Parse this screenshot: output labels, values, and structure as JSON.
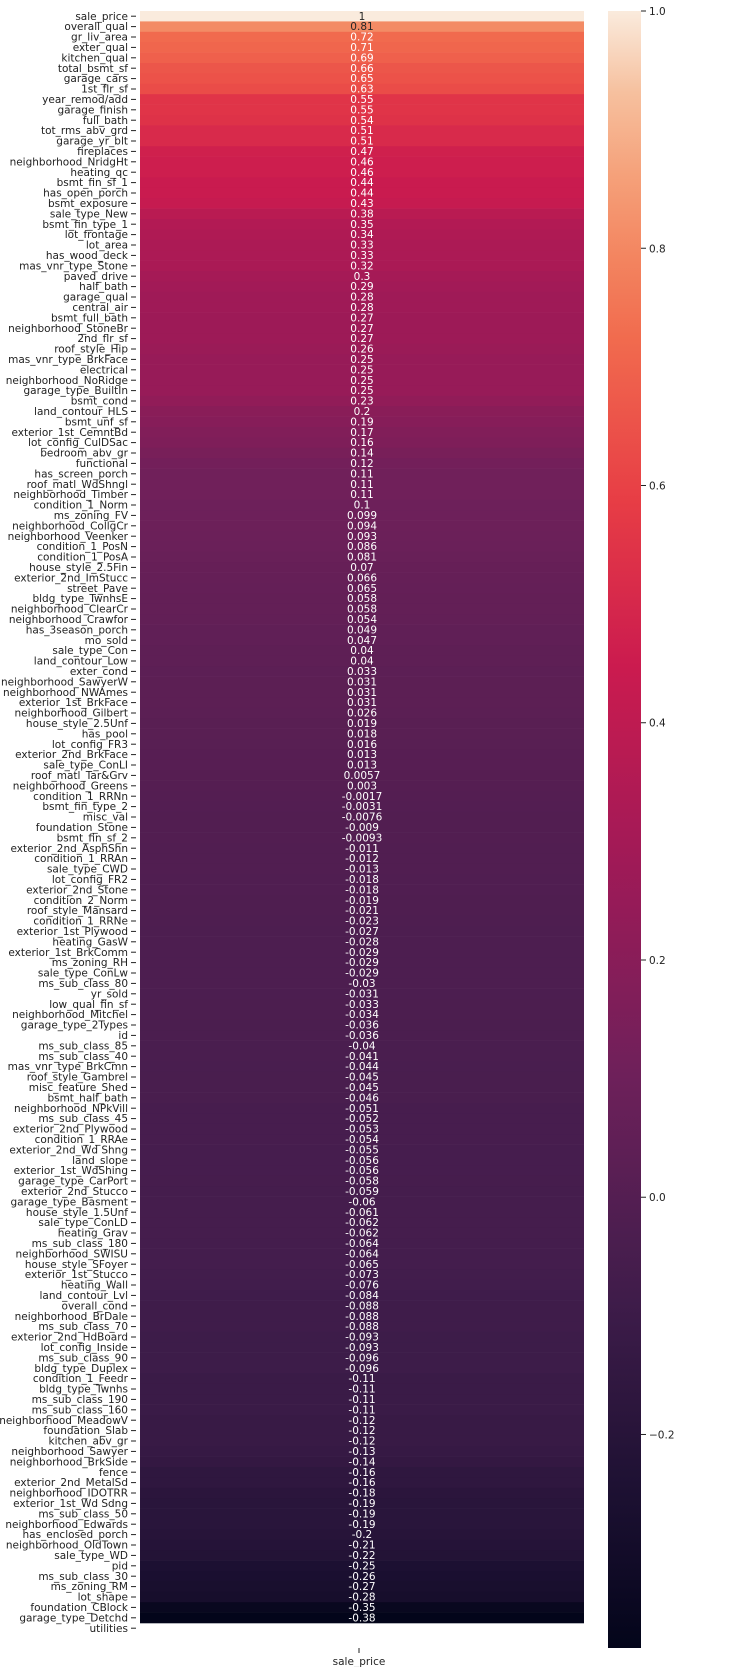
{
  "chart_data": {
    "type": "heatmap",
    "column": "sale_price",
    "x_tick_label": "sale_price",
    "colormap": "rocket",
    "colorbar": {
      "min": -0.38,
      "max": 1.0,
      "ticks": [
        1.0,
        0.8,
        0.6,
        0.4,
        0.2,
        0.0,
        -0.2
      ],
      "tick_labels": [
        "1.0",
        "0.8",
        "0.6",
        "0.4",
        "0.2",
        "0.0",
        "−0.2"
      ]
    },
    "rows": [
      {
        "label": "sale_price",
        "value": 1,
        "text": "1"
      },
      {
        "label": "overall_qual",
        "value": 0.81,
        "text": "0.81"
      },
      {
        "label": "gr_liv_area",
        "value": 0.72,
        "text": "0.72"
      },
      {
        "label": "exter_qual",
        "value": 0.71,
        "text": "0.71"
      },
      {
        "label": "kitchen_qual",
        "value": 0.69,
        "text": "0.69"
      },
      {
        "label": "total_bsmt_sf",
        "value": 0.66,
        "text": "0.66"
      },
      {
        "label": "garage_cars",
        "value": 0.65,
        "text": "0.65"
      },
      {
        "label": "1st_flr_sf",
        "value": 0.63,
        "text": "0.63"
      },
      {
        "label": "year_remod/add",
        "value": 0.55,
        "text": "0.55"
      },
      {
        "label": "garage_finish",
        "value": 0.55,
        "text": "0.55"
      },
      {
        "label": "full_bath",
        "value": 0.54,
        "text": "0.54"
      },
      {
        "label": "tot_rms_abv_grd",
        "value": 0.51,
        "text": "0.51"
      },
      {
        "label": "garage_yr_blt",
        "value": 0.51,
        "text": "0.51"
      },
      {
        "label": "fireplaces",
        "value": 0.47,
        "text": "0.47"
      },
      {
        "label": "neighborhood_NridgHt",
        "value": 0.46,
        "text": "0.46"
      },
      {
        "label": "heating_qc",
        "value": 0.46,
        "text": "0.46"
      },
      {
        "label": "bsmt_fin_sf_1",
        "value": 0.44,
        "text": "0.44"
      },
      {
        "label": "has_open_porch",
        "value": 0.44,
        "text": "0.44"
      },
      {
        "label": "bsmt_exposure",
        "value": 0.43,
        "text": "0.43"
      },
      {
        "label": "sale_type_New",
        "value": 0.38,
        "text": "0.38"
      },
      {
        "label": "bsmt_fin_type_1",
        "value": 0.35,
        "text": "0.35"
      },
      {
        "label": "lot_frontage",
        "value": 0.34,
        "text": "0.34"
      },
      {
        "label": "lot_area",
        "value": 0.33,
        "text": "0.33"
      },
      {
        "label": "has_wood_deck",
        "value": 0.33,
        "text": "0.33"
      },
      {
        "label": "mas_vnr_type_Stone",
        "value": 0.32,
        "text": "0.32"
      },
      {
        "label": "paved_drive",
        "value": 0.3,
        "text": "0.3"
      },
      {
        "label": "half_bath",
        "value": 0.29,
        "text": "0.29"
      },
      {
        "label": "garage_qual",
        "value": 0.28,
        "text": "0.28"
      },
      {
        "label": "central_air",
        "value": 0.28,
        "text": "0.28"
      },
      {
        "label": "bsmt_full_bath",
        "value": 0.27,
        "text": "0.27"
      },
      {
        "label": "neighborhood_StoneBr",
        "value": 0.27,
        "text": "0.27"
      },
      {
        "label": "2nd_flr_sf",
        "value": 0.27,
        "text": "0.27"
      },
      {
        "label": "roof_style_Hip",
        "value": 0.26,
        "text": "0.26"
      },
      {
        "label": "mas_vnr_type_BrkFace",
        "value": 0.25,
        "text": "0.25"
      },
      {
        "label": "electrical",
        "value": 0.25,
        "text": "0.25"
      },
      {
        "label": "neighborhood_NoRidge",
        "value": 0.25,
        "text": "0.25"
      },
      {
        "label": "garage_type_BuiltIn",
        "value": 0.25,
        "text": "0.25"
      },
      {
        "label": "bsmt_cond",
        "value": 0.23,
        "text": "0.23"
      },
      {
        "label": "land_contour_HLS",
        "value": 0.2,
        "text": "0.2"
      },
      {
        "label": "bsmt_unf_sf",
        "value": 0.19,
        "text": "0.19"
      },
      {
        "label": "exterior_1st_CemntBd",
        "value": 0.17,
        "text": "0.17"
      },
      {
        "label": "lot_config_CulDSac",
        "value": 0.16,
        "text": "0.16"
      },
      {
        "label": "bedroom_abv_gr",
        "value": 0.14,
        "text": "0.14"
      },
      {
        "label": "functional",
        "value": 0.12,
        "text": "0.12"
      },
      {
        "label": "has_screen_porch",
        "value": 0.11,
        "text": "0.11"
      },
      {
        "label": "roof_matl_WdShngl",
        "value": 0.11,
        "text": "0.11"
      },
      {
        "label": "neighborhood_Timber",
        "value": 0.11,
        "text": "0.11"
      },
      {
        "label": "condition_1_Norm",
        "value": 0.1,
        "text": "0.1"
      },
      {
        "label": "ms_zoning_FV",
        "value": 0.099,
        "text": "0.099"
      },
      {
        "label": "neighborhood_CollgCr",
        "value": 0.094,
        "text": "0.094"
      },
      {
        "label": "neighborhood_Veenker",
        "value": 0.093,
        "text": "0.093"
      },
      {
        "label": "condition_1_PosN",
        "value": 0.086,
        "text": "0.086"
      },
      {
        "label": "condition_1_PosA",
        "value": 0.081,
        "text": "0.081"
      },
      {
        "label": "house_style_2.5Fin",
        "value": 0.07,
        "text": "0.07"
      },
      {
        "label": "exterior_2nd_ImStucc",
        "value": 0.066,
        "text": "0.066"
      },
      {
        "label": "street_Pave",
        "value": 0.065,
        "text": "0.065"
      },
      {
        "label": "bldg_type_TwnhsE",
        "value": 0.058,
        "text": "0.058"
      },
      {
        "label": "neighborhood_ClearCr",
        "value": 0.058,
        "text": "0.058"
      },
      {
        "label": "neighborhood_Crawfor",
        "value": 0.054,
        "text": "0.054"
      },
      {
        "label": "has_3season_porch",
        "value": 0.049,
        "text": "0.049"
      },
      {
        "label": "mo_sold",
        "value": 0.047,
        "text": "0.047"
      },
      {
        "label": "sale_type_Con",
        "value": 0.04,
        "text": "0.04"
      },
      {
        "label": "land_contour_Low",
        "value": 0.04,
        "text": "0.04"
      },
      {
        "label": "exter_cond",
        "value": 0.033,
        "text": "0.033"
      },
      {
        "label": "neighborhood_SawyerW",
        "value": 0.031,
        "text": "0.031"
      },
      {
        "label": "neighborhood_NWAmes",
        "value": 0.031,
        "text": "0.031"
      },
      {
        "label": "exterior_1st_BrkFace",
        "value": 0.031,
        "text": "0.031"
      },
      {
        "label": "neighborhood_Gilbert",
        "value": 0.026,
        "text": "0.026"
      },
      {
        "label": "house_style_2.5Unf",
        "value": 0.019,
        "text": "0.019"
      },
      {
        "label": "has_pool",
        "value": 0.018,
        "text": "0.018"
      },
      {
        "label": "lot_config_FR3",
        "value": 0.016,
        "text": "0.016"
      },
      {
        "label": "exterior_2nd_BrkFace",
        "value": 0.013,
        "text": "0.013"
      },
      {
        "label": "sale_type_ConLI",
        "value": 0.013,
        "text": "0.013"
      },
      {
        "label": "roof_matl_Tar&Grv",
        "value": 0.0057,
        "text": "0.0057"
      },
      {
        "label": "neighborhood_Greens",
        "value": 0.003,
        "text": "0.003"
      },
      {
        "label": "condition_1_RRNn",
        "value": -0.0017,
        "text": "-0.0017"
      },
      {
        "label": "bsmt_fin_type_2",
        "value": -0.0031,
        "text": "-0.0031"
      },
      {
        "label": "misc_val",
        "value": -0.0076,
        "text": "-0.0076"
      },
      {
        "label": "foundation_Stone",
        "value": -0.009,
        "text": "-0.009"
      },
      {
        "label": "bsmt_fin_sf_2",
        "value": -0.0093,
        "text": "-0.0093"
      },
      {
        "label": "exterior_2nd_AsphShn",
        "value": -0.011,
        "text": "-0.011"
      },
      {
        "label": "condition_1_RRAn",
        "value": -0.012,
        "text": "-0.012"
      },
      {
        "label": "sale_type_CWD",
        "value": -0.013,
        "text": "-0.013"
      },
      {
        "label": "lot_config_FR2",
        "value": -0.018,
        "text": "-0.018"
      },
      {
        "label": "exterior_2nd_Stone",
        "value": -0.018,
        "text": "-0.018"
      },
      {
        "label": "condition_2_Norm",
        "value": -0.019,
        "text": "-0.019"
      },
      {
        "label": "roof_style_Mansard",
        "value": -0.021,
        "text": "-0.021"
      },
      {
        "label": "condition_1_RRNe",
        "value": -0.023,
        "text": "-0.023"
      },
      {
        "label": "exterior_1st_Plywood",
        "value": -0.027,
        "text": "-0.027"
      },
      {
        "label": "heating_GasW",
        "value": -0.028,
        "text": "-0.028"
      },
      {
        "label": "exterior_1st_BrkComm",
        "value": -0.029,
        "text": "-0.029"
      },
      {
        "label": "ms_zoning_RH",
        "value": -0.029,
        "text": "-0.029"
      },
      {
        "label": "sale_type_ConLw",
        "value": -0.029,
        "text": "-0.029"
      },
      {
        "label": "ms_sub_class_80",
        "value": -0.03,
        "text": "-0.03"
      },
      {
        "label": "yr_sold",
        "value": -0.031,
        "text": "-0.031"
      },
      {
        "label": "low_qual_fin_sf",
        "value": -0.033,
        "text": "-0.033"
      },
      {
        "label": "neighborhood_Mitchel",
        "value": -0.034,
        "text": "-0.034"
      },
      {
        "label": "garage_type_2Types",
        "value": -0.036,
        "text": "-0.036"
      },
      {
        "label": "id",
        "value": -0.036,
        "text": "-0.036"
      },
      {
        "label": "ms_sub_class_85",
        "value": -0.04,
        "text": "-0.04"
      },
      {
        "label": "ms_sub_class_40",
        "value": -0.041,
        "text": "-0.041"
      },
      {
        "label": "mas_vnr_type_BrkCmn",
        "value": -0.044,
        "text": "-0.044"
      },
      {
        "label": "roof_style_Gambrel",
        "value": -0.045,
        "text": "-0.045"
      },
      {
        "label": "misc_feature_Shed",
        "value": -0.045,
        "text": "-0.045"
      },
      {
        "label": "bsmt_half_bath",
        "value": -0.046,
        "text": "-0.046"
      },
      {
        "label": "neighborhood_NPkVill",
        "value": -0.051,
        "text": "-0.051"
      },
      {
        "label": "ms_sub_class_45",
        "value": -0.052,
        "text": "-0.052"
      },
      {
        "label": "exterior_2nd_Plywood",
        "value": -0.053,
        "text": "-0.053"
      },
      {
        "label": "condition_1_RRAe",
        "value": -0.054,
        "text": "-0.054"
      },
      {
        "label": "exterior_2nd_Wd Shng",
        "value": -0.055,
        "text": "-0.055"
      },
      {
        "label": "land_slope",
        "value": -0.056,
        "text": "-0.056"
      },
      {
        "label": "exterior_1st_WdShing",
        "value": -0.056,
        "text": "-0.056"
      },
      {
        "label": "garage_type_CarPort",
        "value": -0.058,
        "text": "-0.058"
      },
      {
        "label": "exterior_2nd_Stucco",
        "value": -0.059,
        "text": "-0.059"
      },
      {
        "label": "garage_type_Basment",
        "value": -0.06,
        "text": "-0.06"
      },
      {
        "label": "house_style_1.5Unf",
        "value": -0.061,
        "text": "-0.061"
      },
      {
        "label": "sale_type_ConLD",
        "value": -0.062,
        "text": "-0.062"
      },
      {
        "label": "heating_Grav",
        "value": -0.062,
        "text": "-0.062"
      },
      {
        "label": "ms_sub_class_180",
        "value": -0.064,
        "text": "-0.064"
      },
      {
        "label": "neighborhood_SWISU",
        "value": -0.064,
        "text": "-0.064"
      },
      {
        "label": "house_style_SFoyer",
        "value": -0.065,
        "text": "-0.065"
      },
      {
        "label": "exterior_1st_Stucco",
        "value": -0.073,
        "text": "-0.073"
      },
      {
        "label": "heating_Wall",
        "value": -0.076,
        "text": "-0.076"
      },
      {
        "label": "land_contour_Lvl",
        "value": -0.084,
        "text": "-0.084"
      },
      {
        "label": "overall_cond",
        "value": -0.088,
        "text": "-0.088"
      },
      {
        "label": "neighborhood_BrDale",
        "value": -0.088,
        "text": "-0.088"
      },
      {
        "label": "ms_sub_class_70",
        "value": -0.088,
        "text": "-0.088"
      },
      {
        "label": "exterior_2nd_HdBoard",
        "value": -0.093,
        "text": "-0.093"
      },
      {
        "label": "lot_config_Inside",
        "value": -0.093,
        "text": "-0.093"
      },
      {
        "label": "ms_sub_class_90",
        "value": -0.096,
        "text": "-0.096"
      },
      {
        "label": "bldg_type_Duplex",
        "value": -0.096,
        "text": "-0.096"
      },
      {
        "label": "condition_1_Feedr",
        "value": -0.11,
        "text": "-0.11"
      },
      {
        "label": "bldg_type_Twnhs",
        "value": -0.11,
        "text": "-0.11"
      },
      {
        "label": "ms_sub_class_190",
        "value": -0.11,
        "text": "-0.11"
      },
      {
        "label": "ms_sub_class_160",
        "value": -0.11,
        "text": "-0.11"
      },
      {
        "label": "neighborhood_MeadowV",
        "value": -0.12,
        "text": "-0.12"
      },
      {
        "label": "foundation_Slab",
        "value": -0.12,
        "text": "-0.12"
      },
      {
        "label": "kitchen_abv_gr",
        "value": -0.12,
        "text": "-0.12"
      },
      {
        "label": "neighborhood_Sawyer",
        "value": -0.13,
        "text": "-0.13"
      },
      {
        "label": "neighborhood_BrkSide",
        "value": -0.14,
        "text": "-0.14"
      },
      {
        "label": "fence",
        "value": -0.16,
        "text": "-0.16"
      },
      {
        "label": "exterior_2nd_MetalSd",
        "value": -0.16,
        "text": "-0.16"
      },
      {
        "label": "neighborhood_IDOTRR",
        "value": -0.18,
        "text": "-0.18"
      },
      {
        "label": "exterior_1st_Wd Sdng",
        "value": -0.19,
        "text": "-0.19"
      },
      {
        "label": "ms_sub_class_50",
        "value": -0.19,
        "text": "-0.19"
      },
      {
        "label": "neighborhood_Edwards",
        "value": -0.19,
        "text": "-0.19"
      },
      {
        "label": "has_enclosed_porch",
        "value": -0.2,
        "text": "-0.2"
      },
      {
        "label": "neighborhood_OldTown",
        "value": -0.21,
        "text": "-0.21"
      },
      {
        "label": "sale_type_WD",
        "value": -0.22,
        "text": "-0.22"
      },
      {
        "label": "pid",
        "value": -0.25,
        "text": "-0.25"
      },
      {
        "label": "ms_sub_class_30",
        "value": -0.26,
        "text": "-0.26"
      },
      {
        "label": "ms_zoning_RM",
        "value": -0.27,
        "text": "-0.27"
      },
      {
        "label": "lot_shape",
        "value": -0.28,
        "text": "-0.28"
      },
      {
        "label": "foundation_CBlock",
        "value": -0.35,
        "text": "-0.35"
      },
      {
        "label": "garage_type_Detchd",
        "value": -0.38,
        "text": "-0.38"
      },
      {
        "label": "utilities",
        "value": null,
        "text": ""
      }
    ]
  }
}
